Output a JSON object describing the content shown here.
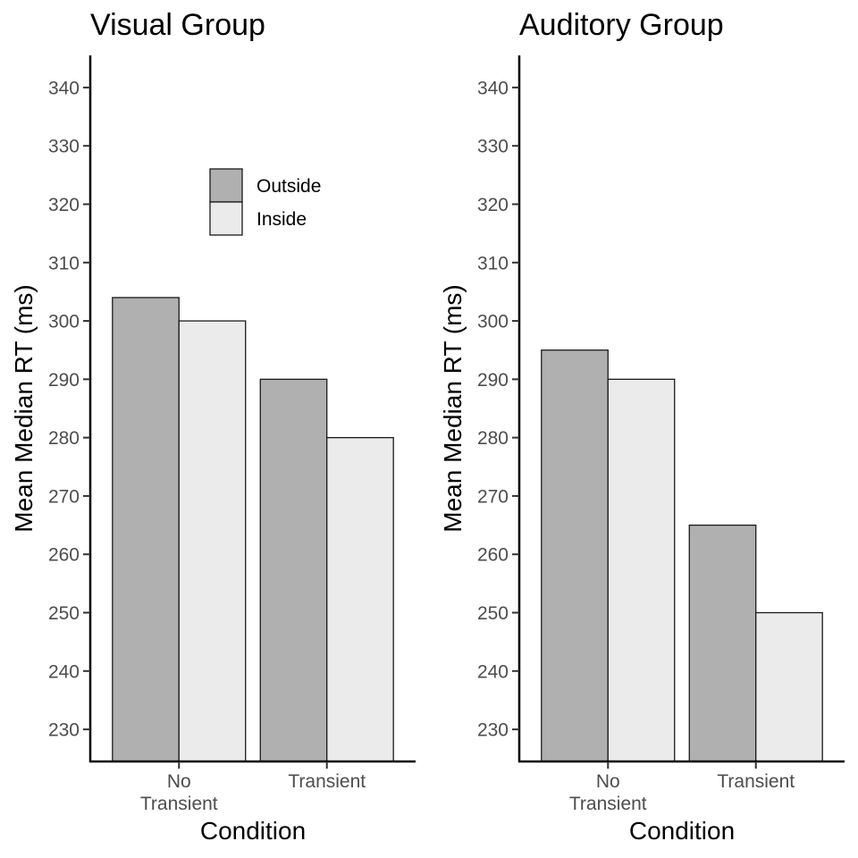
{
  "chart_data": [
    {
      "type": "bar",
      "title": "Visual Group",
      "xlabel": "Condition",
      "ylabel": "Mean Median RT (ms)",
      "categories": [
        [
          "No",
          "Transient"
        ],
        [
          "Transient"
        ]
      ],
      "series": [
        {
          "name": "Outside",
          "color": "#b0b0b0",
          "values": [
            304,
            290
          ]
        },
        {
          "name": "Inside",
          "color": "#ebebeb",
          "values": [
            300,
            280
          ]
        }
      ],
      "ylim": [
        224.5,
        345.5
      ],
      "yticks": [
        230,
        240,
        250,
        260,
        270,
        280,
        290,
        300,
        310,
        320,
        330,
        340
      ],
      "grid": false,
      "legend": {
        "show": true,
        "placement": "inside-top-center"
      }
    },
    {
      "type": "bar",
      "title": "Auditory Group",
      "xlabel": "Condition",
      "ylabel": "Mean Median RT (ms)",
      "categories": [
        [
          "No",
          "Transient"
        ],
        [
          "Transient"
        ]
      ],
      "series": [
        {
          "name": "Outside",
          "color": "#b0b0b0",
          "values": [
            295,
            265
          ]
        },
        {
          "name": "Inside",
          "color": "#ebebeb",
          "values": [
            290,
            250
          ]
        }
      ],
      "ylim": [
        224.5,
        345.5
      ],
      "yticks": [
        230,
        240,
        250,
        260,
        270,
        280,
        290,
        300,
        310,
        320,
        330,
        340
      ],
      "grid": false,
      "legend": {
        "show": false
      }
    }
  ]
}
